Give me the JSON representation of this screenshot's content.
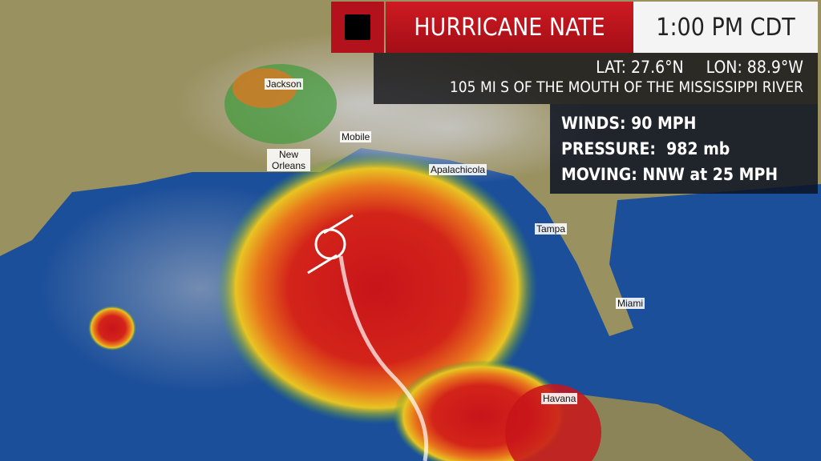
{
  "header": {
    "stop_icon": "stop-square-icon",
    "title": "HURRICANE NATE",
    "time": "1:00 PM CDT"
  },
  "location": {
    "lat": "LAT: 27.6°N",
    "lon": "LON: 88.9°W",
    "description": "105 MI S OF THE MOUTH OF THE MISSISSIPPI RIVER"
  },
  "stats": {
    "winds": "WINDS: 90 MPH",
    "pressure": "PRESSURE:  982 mb",
    "moving": "MOVING: NNW at 25 MPH"
  },
  "cities": [
    {
      "name": "Jackson"
    },
    {
      "name": "Mobile"
    },
    {
      "name": "New Orleans"
    },
    {
      "name": "Apalachicola"
    },
    {
      "name": "Tampa"
    },
    {
      "name": "Miami"
    },
    {
      "name": "Havana"
    }
  ],
  "colors": {
    "banner_red": "#c8161f",
    "ocean": "#1c4f9a",
    "land": "#9a9160",
    "storm_core": "#c0141a"
  }
}
